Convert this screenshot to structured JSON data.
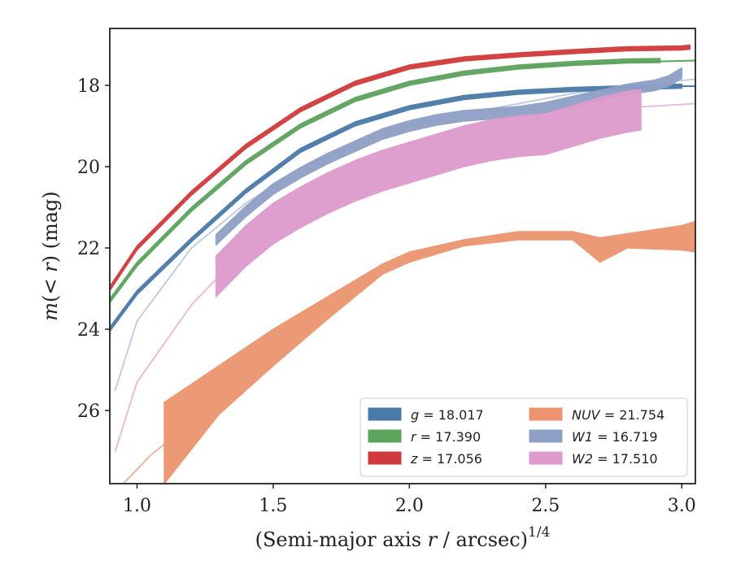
{
  "chart_data": {
    "type": "line",
    "xlabel": "(Semi-major axis r / arcsec)",
    "xlabel_var": "r",
    "xlabel_prefix": "(Semi-major axis ",
    "xlabel_suffix": " / arcsec)",
    "xlabel_exponent": "1/4",
    "ylabel": "m(< r) (mag)",
    "ylabel_m": "m",
    "ylabel_mid": "(< ",
    "ylabel_r": "r",
    "ylabel_end": ") (mag)",
    "xlim": [
      0.9,
      3.05
    ],
    "ylim": [
      27.8,
      16.6
    ],
    "y_inverted": true,
    "grid": false,
    "legend_position": "lower-right",
    "xticks": [
      1.0,
      1.5,
      2.0,
      2.5,
      3.0
    ],
    "xtick_labels": [
      "1.0",
      "1.5",
      "2.0",
      "2.5",
      "3.0"
    ],
    "yticks": [
      18,
      20,
      22,
      24,
      26
    ],
    "ytick_labels": [
      "18",
      "20",
      "22",
      "24",
      "26"
    ],
    "series": [
      {
        "name": "g = 18.017",
        "var": "g",
        "value": "18.017",
        "color": "#4a7aa7",
        "model_color": "#4a7aa7",
        "band_width": 0.05,
        "x": [
          0.9,
          1.0,
          1.2,
          1.4,
          1.6,
          1.8,
          2.0,
          2.2,
          2.4,
          2.6,
          2.8,
          3.0
        ],
        "y": [
          24.0,
          23.1,
          21.8,
          20.6,
          19.6,
          18.95,
          18.55,
          18.3,
          18.17,
          18.1,
          18.06,
          18.02
        ],
        "model_x": [
          3.0,
          3.05
        ],
        "model_y": [
          18.02,
          18.02
        ]
      },
      {
        "name": "r = 17.390",
        "var": "r",
        "value": "17.390",
        "color": "#5ca35c",
        "model_color": "#5ca35c",
        "band_width": 0.05,
        "x": [
          0.9,
          1.0,
          1.2,
          1.4,
          1.6,
          1.8,
          2.0,
          2.2,
          2.4,
          2.6,
          2.8,
          2.92
        ],
        "y": [
          23.3,
          22.4,
          21.05,
          19.9,
          19.0,
          18.35,
          17.95,
          17.7,
          17.55,
          17.46,
          17.4,
          17.39
        ],
        "model_x": [
          2.4,
          2.7,
          3.05
        ],
        "model_y": [
          17.55,
          17.45,
          17.39
        ]
      },
      {
        "name": "z = 17.056",
        "var": "z",
        "value": "17.056",
        "color": "#d03a3a",
        "model_color": "#d03a3a",
        "band_width": 0.05,
        "x": [
          0.9,
          1.0,
          1.2,
          1.4,
          1.6,
          1.8,
          2.0,
          2.2,
          2.4,
          2.6,
          2.8,
          3.0,
          3.03
        ],
        "y": [
          23.0,
          22.0,
          20.65,
          19.5,
          18.6,
          17.95,
          17.55,
          17.35,
          17.25,
          17.17,
          17.1,
          17.08,
          17.06
        ],
        "model_x": [],
        "model_y": []
      },
      {
        "name": "NUV = 21.754",
        "var": "NUV",
        "value": "21.754",
        "color": "#ec946f",
        "model_color": "#ecb79c",
        "band_width_x": [
          1.1,
          1.3,
          1.5,
          1.7,
          1.9,
          2.0,
          2.2,
          2.4,
          2.6,
          2.7,
          2.8,
          3.0,
          3.05
        ],
        "band_low": [
          25.8,
          24.9,
          24.0,
          23.2,
          22.4,
          22.1,
          21.8,
          21.6,
          21.6,
          21.75,
          21.65,
          21.45,
          21.35
        ],
        "band_high": [
          27.8,
          26.1,
          24.9,
          23.75,
          22.65,
          22.35,
          21.95,
          21.8,
          21.8,
          22.35,
          22.0,
          22.05,
          22.1
        ],
        "x": [
          1.1,
          1.3,
          1.5,
          1.7,
          1.9,
          2.0,
          2.2,
          2.4,
          2.6,
          2.7,
          2.8,
          3.0,
          3.05
        ],
        "y": [
          26.8,
          25.5,
          24.45,
          23.5,
          22.55,
          22.2,
          21.9,
          21.7,
          21.7,
          22.0,
          21.8,
          21.75,
          21.75
        ],
        "model_x": [
          0.95,
          1.05,
          1.2,
          1.3
        ],
        "model_y": [
          27.8,
          27.1,
          26.3,
          25.6
        ]
      },
      {
        "name": "W1 = 16.719",
        "var": "W1",
        "value": "16.719",
        "color": "#8fa0c6",
        "model_color": "#c3cde0",
        "band_width": 0.13,
        "x": [
          1.29,
          1.4,
          1.5,
          1.6,
          1.7,
          1.8,
          1.9,
          2.0,
          2.1,
          2.2,
          2.3,
          2.4,
          2.5,
          2.6,
          2.7,
          2.8,
          2.9,
          2.95,
          3.0
        ],
        "y": [
          21.8,
          21.1,
          20.55,
          20.15,
          19.8,
          19.5,
          19.2,
          19.0,
          18.85,
          18.75,
          18.7,
          18.65,
          18.55,
          18.4,
          18.25,
          18.1,
          18.0,
          17.9,
          17.7
        ],
        "model_x": [
          0.92,
          1.0,
          1.2,
          1.4,
          1.6,
          1.8,
          2.0,
          2.2,
          2.4,
          2.6,
          2.8,
          3.05
        ],
        "model_y": [
          25.5,
          23.8,
          22.0,
          20.9,
          20.05,
          19.45,
          19.0,
          18.7,
          18.45,
          18.2,
          18.0,
          17.85
        ]
      },
      {
        "name": "W2 = 17.510",
        "var": "W2",
        "value": "17.510",
        "color": "#de9acc",
        "model_color": "#e8bdd9",
        "band_width": 0.5,
        "x": [
          1.29,
          1.4,
          1.5,
          1.6,
          1.7,
          1.8,
          1.9,
          2.0,
          2.1,
          2.2,
          2.3,
          2.4,
          2.5,
          2.6,
          2.7,
          2.8,
          2.85
        ],
        "y": [
          22.7,
          21.95,
          21.4,
          21.0,
          20.65,
          20.35,
          20.1,
          19.9,
          19.7,
          19.5,
          19.35,
          19.25,
          19.2,
          19.0,
          18.8,
          18.65,
          18.6
        ],
        "model_x": [
          0.92,
          1.0,
          1.2,
          1.4,
          1.6,
          1.8,
          2.0,
          2.2,
          2.4,
          2.6,
          2.8,
          3.05
        ],
        "model_y": [
          27.0,
          25.3,
          23.4,
          22.0,
          21.0,
          20.3,
          19.75,
          19.35,
          19.0,
          18.75,
          18.55,
          18.45
        ]
      }
    ]
  }
}
